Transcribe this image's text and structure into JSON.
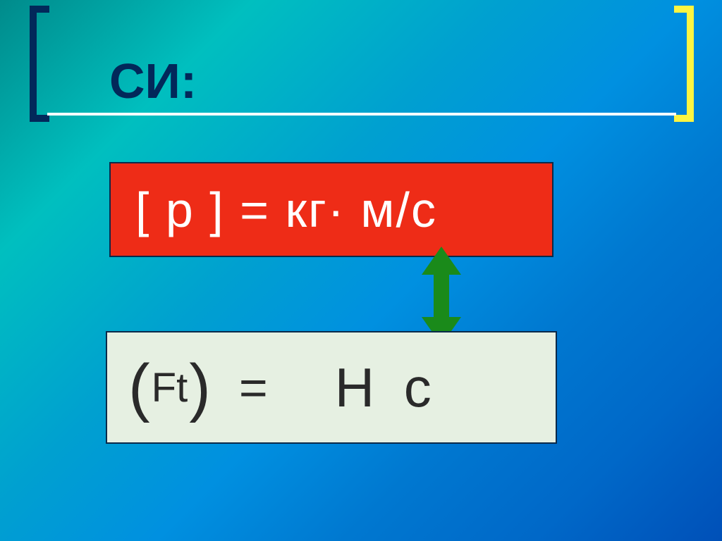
{
  "slide": {
    "title": "СИ:",
    "title_color": "#02285a",
    "title_fontsize": 70,
    "background_gradient": [
      "#008b8b",
      "#00bfbf",
      "#00a0d0",
      "#0090e0",
      "#0078d0",
      "#0068c8",
      "#0050b8"
    ],
    "left_bracket_color": "#02285a",
    "right_bracket_color": "#fdf541",
    "bracket_thickness": 10,
    "divider_color": "#ffffff"
  },
  "formula1": {
    "text": "[ р ] = кг· м/с",
    "box_color": "#ee2c17",
    "text_color": "#ffffff",
    "fontsize": 70,
    "border_color": "#0a2a4a"
  },
  "formula2": {
    "ft_label": "Ft",
    "equals": "=",
    "result": "Н с",
    "box_color": "#e6f0e2",
    "text_color": "#2a2a2a",
    "ft_fontsize": 58,
    "equals_fontsize": 70,
    "result_fontsize": 78,
    "paren_fontsize": 92,
    "border_color": "#0a2a4a"
  },
  "arrow": {
    "type": "double-headed-vertical",
    "color": "#1a8a1a",
    "shaft_width": 22,
    "head_width": 56,
    "total_height": 130
  }
}
